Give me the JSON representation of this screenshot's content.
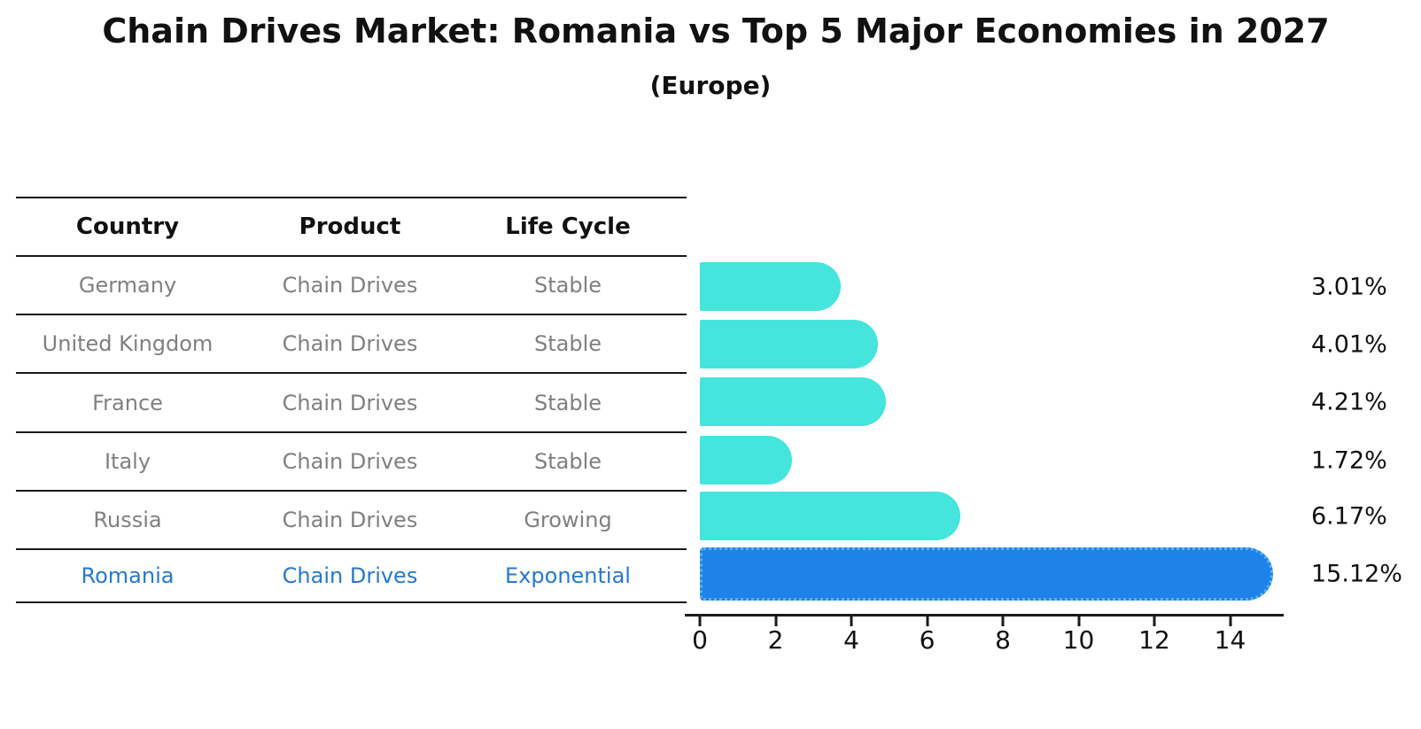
{
  "chart_data": {
    "type": "bar",
    "orientation": "horizontal",
    "title": "Chain Drives Market: Romania vs Top 5 Major Economies in 2027",
    "subtitle": "(Europe)",
    "categories": [
      "Germany",
      "United Kingdom",
      "France",
      "Italy",
      "Russia",
      "Romania"
    ],
    "values": [
      3.01,
      4.01,
      4.21,
      1.72,
      6.17,
      15.12
    ],
    "value_labels": [
      "3.01%",
      "4.01%",
      "4.21%",
      "1.72%",
      "6.17%",
      "15.12%"
    ],
    "x_ticks": [
      0,
      2,
      4,
      6,
      8,
      10,
      12,
      14
    ],
    "xlim": [
      0,
      15.4
    ],
    "grid": false,
    "legend": "none",
    "bar_color": "#45E5DE",
    "highlight_color": "#1E82E8",
    "highlight_edge_color": "#5fb0f0",
    "highlight_index": 5,
    "axis_color": "#1a1a1a",
    "label_color": "#111111"
  },
  "table": {
    "headers": [
      "Country",
      "Product",
      "Life Cycle"
    ],
    "rows": [
      {
        "country": "Germany",
        "product": "Chain Drives",
        "life_cycle": "Stable",
        "highlighted": false
      },
      {
        "country": "United Kingdom",
        "product": "Chain Drives",
        "life_cycle": "Stable",
        "highlighted": false
      },
      {
        "country": "France",
        "product": "Chain Drives",
        "life_cycle": "Stable",
        "highlighted": false
      },
      {
        "country": "Italy",
        "product": "Chain Drives",
        "life_cycle": "Stable",
        "highlighted": false
      },
      {
        "country": "Russia",
        "product": "Chain Drives",
        "life_cycle": "Growing",
        "highlighted": false
      },
      {
        "country": "Romania",
        "product": "Chain Drives",
        "life_cycle": "Exponential",
        "highlighted": true
      }
    ],
    "row_text_color": "#808080",
    "highlight_text_color": "#2878CD"
  }
}
